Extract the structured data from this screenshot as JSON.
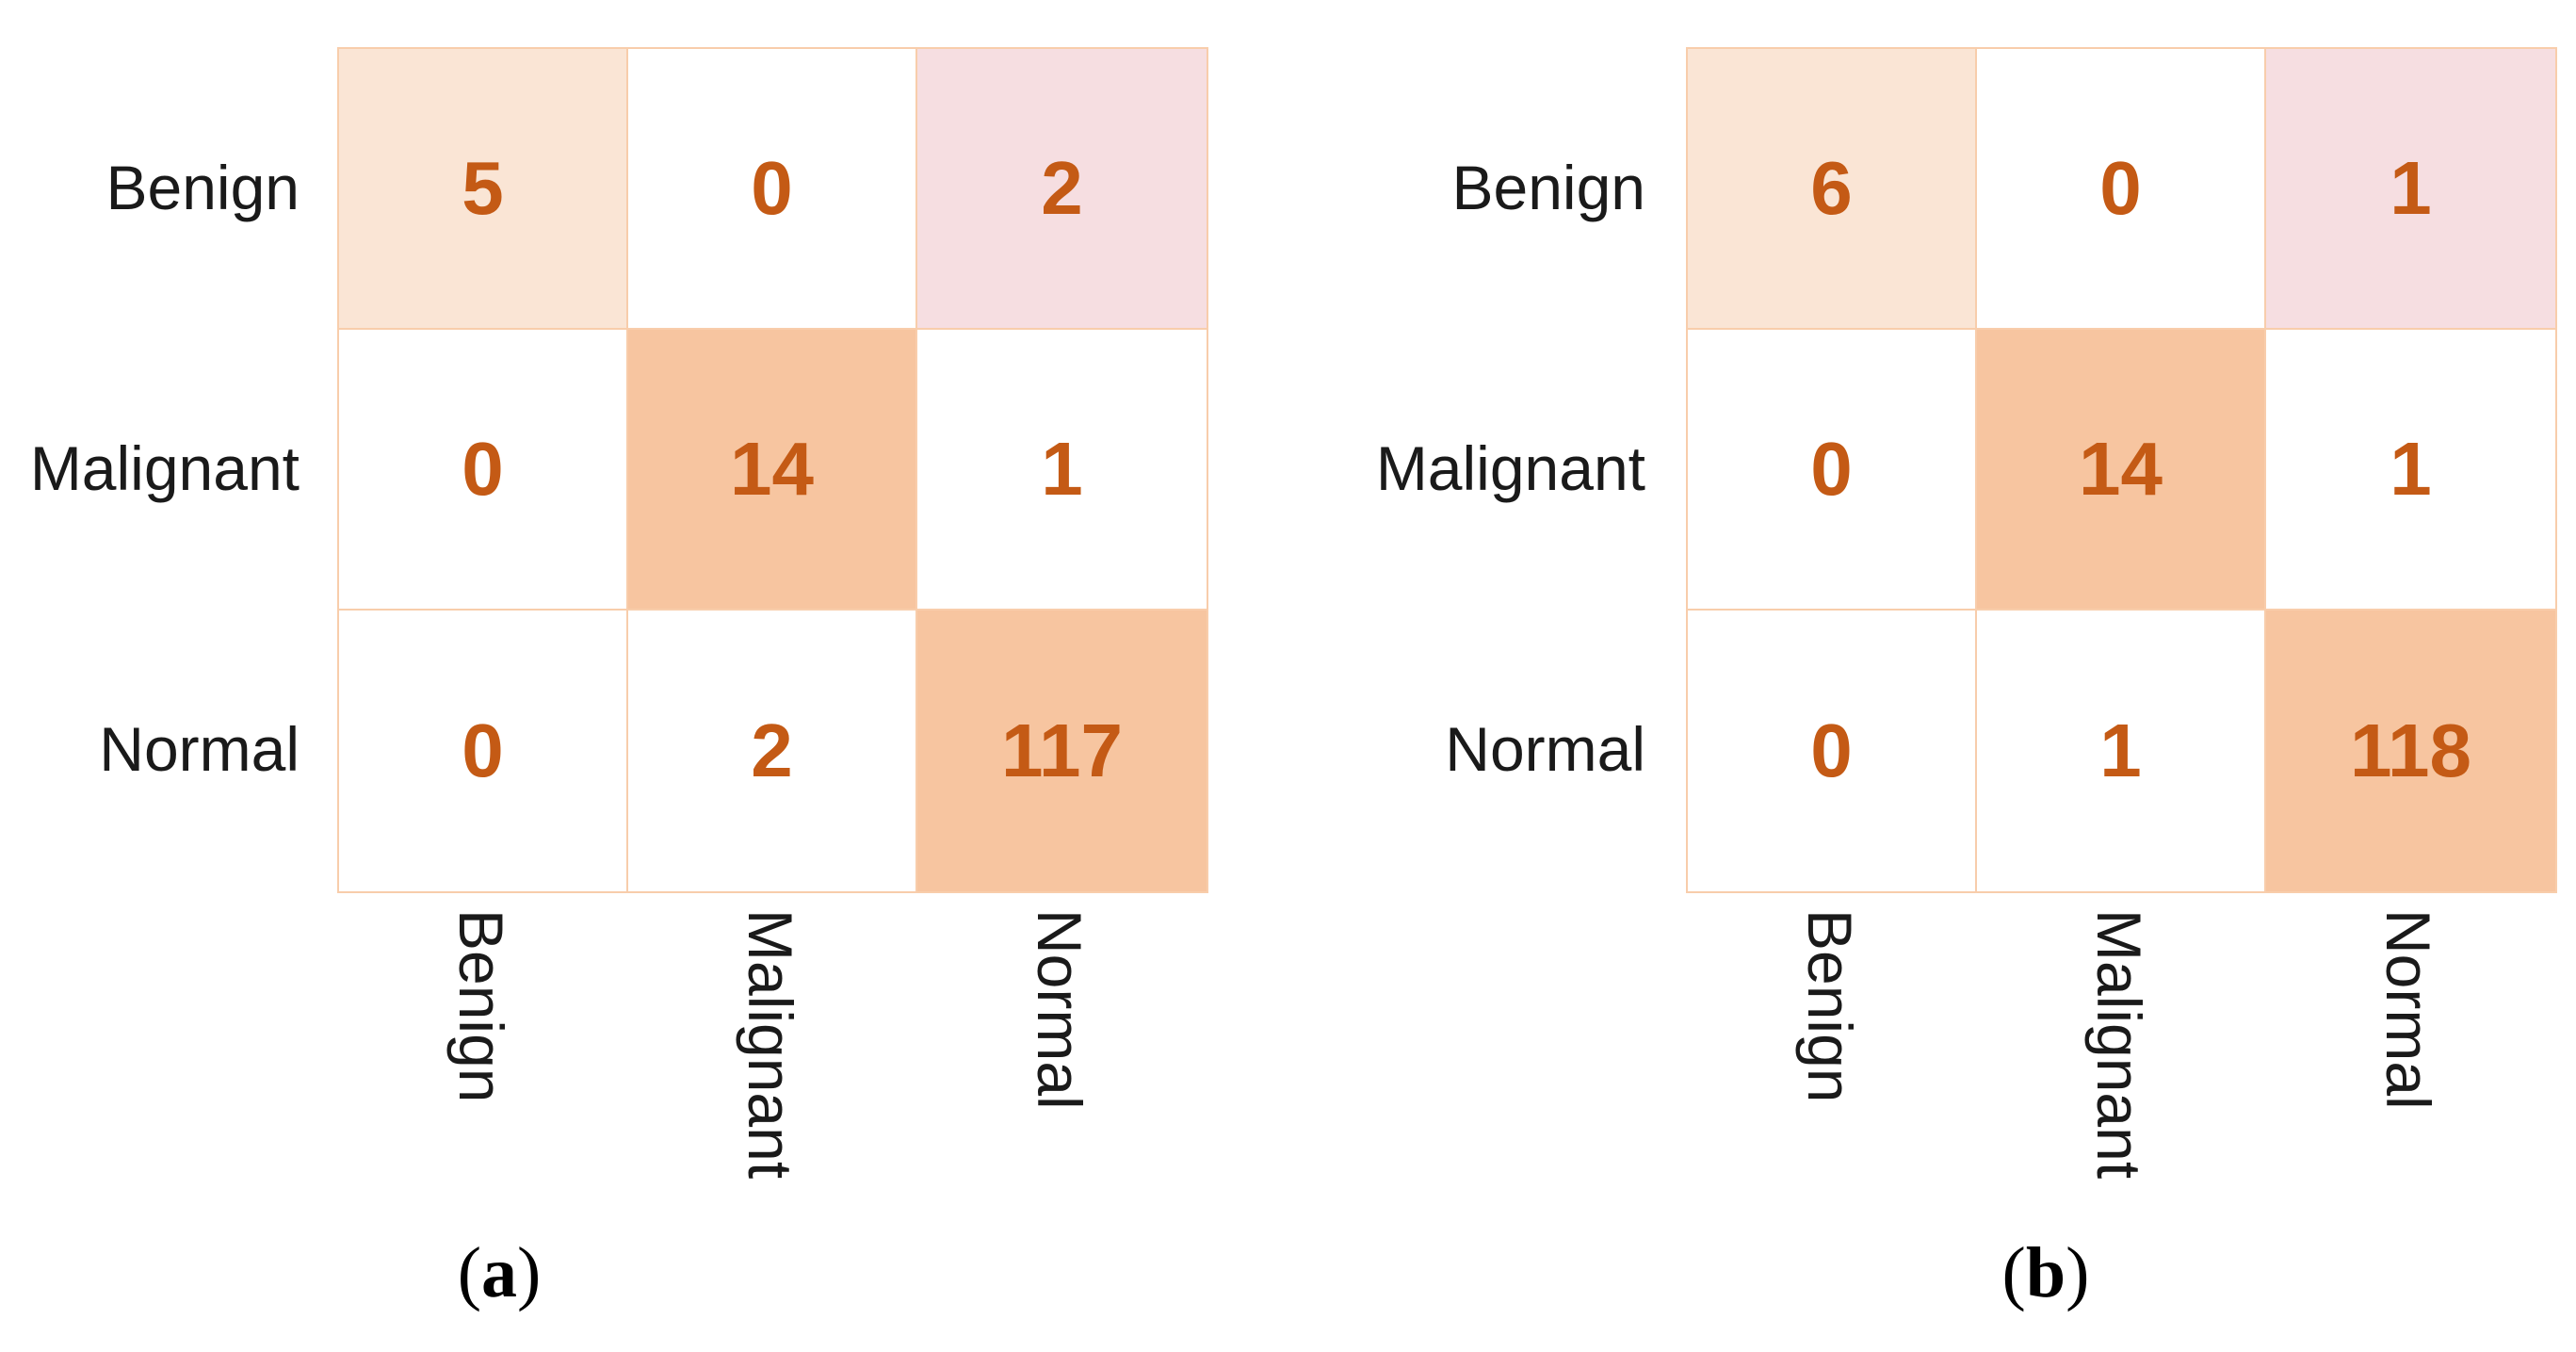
{
  "figure": {
    "background": "#FFFFFF",
    "palette": {
      "number_color": "#C45A15",
      "label_color": "#1A1A1A",
      "grid_border": "#F8CDAB",
      "cell_white": "#FFFFFF",
      "cell_peach": "#FAE5D5",
      "cell_pink": "#F6DEE1",
      "cell_orange": "#F7C5A0"
    }
  },
  "chart_data": [
    {
      "type": "heatmap",
      "panel": "a",
      "caption_open": "(",
      "caption_letter": "a",
      "caption_close": ")",
      "row_labels": [
        "Benign",
        "Malignant",
        "Normal"
      ],
      "col_labels": [
        "Benign",
        "Malignant",
        "Normal"
      ],
      "values": [
        [
          5,
          0,
          2
        ],
        [
          0,
          14,
          1
        ],
        [
          0,
          2,
          117
        ]
      ],
      "cell_colors": [
        [
          "peach",
          "white",
          "pink"
        ],
        [
          "white",
          "orange",
          "white"
        ],
        [
          "white",
          "white",
          "orange"
        ]
      ]
    },
    {
      "type": "heatmap",
      "panel": "b",
      "caption_open": "(",
      "caption_letter": "b",
      "caption_close": ")",
      "row_labels": [
        "Benign",
        "Malignant",
        "Normal"
      ],
      "col_labels": [
        "Benign",
        "Malignant",
        "Normal"
      ],
      "values": [
        [
          6,
          0,
          1
        ],
        [
          0,
          14,
          1
        ],
        [
          0,
          1,
          118
        ]
      ],
      "cell_colors": [
        [
          "peach",
          "white",
          "pink"
        ],
        [
          "white",
          "orange",
          "white"
        ],
        [
          "white",
          "white",
          "orange"
        ]
      ]
    }
  ]
}
